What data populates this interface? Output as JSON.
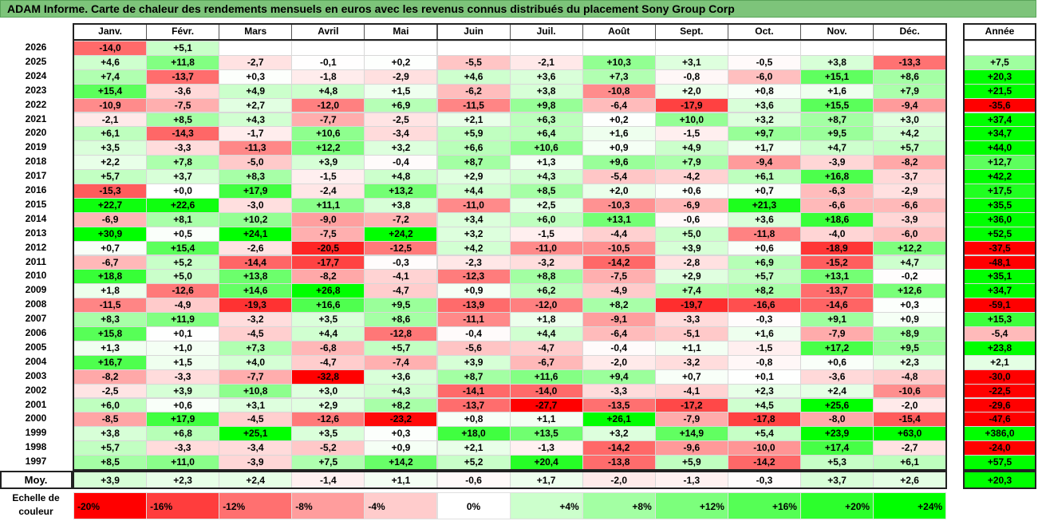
{
  "title": "ADAM Informe. Carte de chaleur des rendements mensuels en euros avec les revenus connus distribués du placement Sony Group Corp",
  "chart_data": {
    "type": "heatmap",
    "months": [
      "Janv.",
      "Févr.",
      "Mars",
      "Avril",
      "Mai",
      "Juin",
      "Juil.",
      "Août",
      "Sept.",
      "Oct.",
      "Nov.",
      "Déc."
    ],
    "year_header": "Année",
    "rows": [
      {
        "year": "2026",
        "values": [
          "-14,0",
          "+5,1",
          "",
          "",
          "",
          "",
          "",
          "",
          "",
          "",
          "",
          ""
        ],
        "annual": ""
      },
      {
        "year": "2025",
        "values": [
          "+4,6",
          "+11,8",
          "-2,7",
          "-0,1",
          "+0,2",
          "-5,5",
          "-2,1",
          "+10,3",
          "+3,1",
          "-0,5",
          "+3,8",
          "-13,3"
        ],
        "annual": "+7,5"
      },
      {
        "year": "2024",
        "values": [
          "+7,4",
          "-13,7",
          "+0,3",
          "-1,8",
          "-2,9",
          "+4,6",
          "+3,6",
          "+7,3",
          "-0,8",
          "-6,0",
          "+15,1",
          "+8,6"
        ],
        "annual": "+20,3"
      },
      {
        "year": "2023",
        "values": [
          "+15,4",
          "-3,6",
          "+4,9",
          "+4,8",
          "+1,5",
          "-6,2",
          "+3,8",
          "-10,8",
          "+2,0",
          "+0,8",
          "+1,6",
          "+7,9"
        ],
        "annual": "+21,5"
      },
      {
        "year": "2022",
        "values": [
          "-10,9",
          "-7,5",
          "+2,7",
          "-12,0",
          "+6,9",
          "-11,5",
          "+9,8",
          "-6,4",
          "-17,9",
          "+3,6",
          "+15,5",
          "-9,4"
        ],
        "annual": "-35,6"
      },
      {
        "year": "2021",
        "values": [
          "-2,1",
          "+8,5",
          "+4,3",
          "-7,7",
          "-2,5",
          "+2,1",
          "+6,3",
          "+0,2",
          "+10,0",
          "+3,2",
          "+8,7",
          "+3,0"
        ],
        "annual": "+37,4"
      },
      {
        "year": "2020",
        "values": [
          "+6,1",
          "-14,3",
          "-1,7",
          "+10,6",
          "-3,4",
          "+5,9",
          "+6,4",
          "+1,6",
          "-1,5",
          "+9,7",
          "+9,5",
          "+4,2"
        ],
        "annual": "+34,7"
      },
      {
        "year": "2019",
        "values": [
          "+3,5",
          "-3,3",
          "-11,3",
          "+12,2",
          "+3,2",
          "+6,6",
          "+10,6",
          "+0,9",
          "+4,9",
          "+1,7",
          "+4,7",
          "+5,7"
        ],
        "annual": "+44,0"
      },
      {
        "year": "2018",
        "values": [
          "+2,2",
          "+7,8",
          "-5,0",
          "+3,9",
          "-0,4",
          "+8,7",
          "+1,3",
          "+9,6",
          "+7,9",
          "-9,4",
          "-3,9",
          "-8,2"
        ],
        "annual": "+12,7"
      },
      {
        "year": "2017",
        "values": [
          "+5,7",
          "+3,7",
          "+8,3",
          "-1,5",
          "+4,8",
          "+2,9",
          "+4,3",
          "-5,4",
          "-4,2",
          "+6,1",
          "+16,8",
          "-3,7"
        ],
        "annual": "+42,2"
      },
      {
        "year": "2016",
        "values": [
          "-15,3",
          "+0,0",
          "+17,9",
          "-2,4",
          "+13,2",
          "+4,4",
          "+8,5",
          "+2,0",
          "+0,6",
          "+0,7",
          "-6,3",
          "-2,9"
        ],
        "annual": "+17,5"
      },
      {
        "year": "2015",
        "values": [
          "+22,7",
          "+22,6",
          "-3,0",
          "+11,1",
          "+3,8",
          "-11,0",
          "+2,5",
          "-10,3",
          "-6,9",
          "+21,3",
          "-6,6",
          "-6,6"
        ],
        "annual": "+35,5"
      },
      {
        "year": "2014",
        "values": [
          "-6,9",
          "+8,1",
          "+10,2",
          "-9,0",
          "-7,2",
          "+3,4",
          "+6,0",
          "+13,1",
          "-0,6",
          "+3,6",
          "+18,6",
          "-3,9"
        ],
        "annual": "+36,0"
      },
      {
        "year": "2013",
        "values": [
          "+30,9",
          "+0,5",
          "+24,1",
          "-7,5",
          "+24,2",
          "+3,2",
          "-1,5",
          "-4,4",
          "+5,0",
          "-11,8",
          "-4,0",
          "-6,0"
        ],
        "annual": "+52,5"
      },
      {
        "year": "2012",
        "values": [
          "+0,7",
          "+15,4",
          "-2,6",
          "-20,5",
          "-12,5",
          "+4,2",
          "-11,0",
          "-10,5",
          "+3,9",
          "+0,6",
          "-18,9",
          "+12,2"
        ],
        "annual": "-37,5"
      },
      {
        "year": "2011",
        "values": [
          "-6,7",
          "+5,2",
          "-14,4",
          "-17,7",
          "-0,3",
          "-2,3",
          "-3,2",
          "-14,2",
          "-2,8",
          "+6,9",
          "-15,2",
          "+4,7"
        ],
        "annual": "-48,1"
      },
      {
        "year": "2010",
        "values": [
          "+18,8",
          "+5,0",
          "+13,8",
          "-8,2",
          "-4,1",
          "-12,3",
          "+8,8",
          "-7,5",
          "+2,9",
          "+5,7",
          "+13,1",
          "-0,2"
        ],
        "annual": "+35,1"
      },
      {
        "year": "2009",
        "values": [
          "+1,8",
          "-12,6",
          "+14,6",
          "+26,8",
          "-4,7",
          "+0,9",
          "+6,2",
          "-4,9",
          "+7,4",
          "+8,2",
          "-13,7",
          "+12,6"
        ],
        "annual": "+34,7"
      },
      {
        "year": "2008",
        "values": [
          "-11,5",
          "-4,9",
          "-19,3",
          "+16,6",
          "+9,5",
          "-13,9",
          "-12,0",
          "+8,2",
          "-19,7",
          "-16,6",
          "-14,6",
          "+0,3"
        ],
        "annual": "-59,1"
      },
      {
        "year": "2007",
        "values": [
          "+8,3",
          "+11,9",
          "-3,2",
          "+3,5",
          "+8,6",
          "-11,1",
          "+1,8",
          "-9,1",
          "-3,3",
          "-0,3",
          "+9,1",
          "+0,9"
        ],
        "annual": "+15,3"
      },
      {
        "year": "2006",
        "values": [
          "+15,8",
          "+0,1",
          "-4,5",
          "+4,4",
          "-12,8",
          "-0,4",
          "+4,4",
          "-6,4",
          "-5,1",
          "+1,6",
          "-7,9",
          "+8,9"
        ],
        "annual": "-5,4"
      },
      {
        "year": "2005",
        "values": [
          "+1,3",
          "+1,0",
          "+7,3",
          "-6,8",
          "+5,7",
          "-5,6",
          "-4,7",
          "-0,4",
          "+1,1",
          "-1,5",
          "+17,2",
          "+9,5"
        ],
        "annual": "+23,8"
      },
      {
        "year": "2004",
        "values": [
          "+16,7",
          "+1,5",
          "+4,0",
          "-4,7",
          "-7,4",
          "+3,9",
          "-6,7",
          "-2,0",
          "-3,2",
          "-0,8",
          "+0,6",
          "+2,3"
        ],
        "annual": "+2,1"
      },
      {
        "year": "2003",
        "values": [
          "-8,2",
          "-3,3",
          "-7,7",
          "-32,8",
          "+3,6",
          "+8,7",
          "+11,6",
          "+9,4",
          "+0,7",
          "+0,1",
          "-3,6",
          "-4,8"
        ],
        "annual": "-30,0"
      },
      {
        "year": "2002",
        "values": [
          "-2,5",
          "+3,9",
          "+10,8",
          "+3,0",
          "+4,3",
          "-14,1",
          "-14,0",
          "-3,3",
          "-4,1",
          "+2,3",
          "+2,4",
          "-10,6"
        ],
        "annual": "-22,5"
      },
      {
        "year": "2001",
        "values": [
          "+6,0",
          "+0,6",
          "+3,1",
          "+2,9",
          "+8,2",
          "-13,7",
          "-27,7",
          "-13,5",
          "-17,2",
          "+4,5",
          "+25,6",
          "-2,0"
        ],
        "annual": "-29,6"
      },
      {
        "year": "2000",
        "values": [
          "-8,5",
          "+17,9",
          "-4,5",
          "-12,6",
          "-23,2",
          "+0,8",
          "+1,1",
          "+26,1",
          "-7,9",
          "-17,8",
          "-8,0",
          "-15,4"
        ],
        "annual": "-47,6"
      },
      {
        "year": "1999",
        "values": [
          "+3,8",
          "+6,8",
          "+25,1",
          "+3,5",
          "+0,3",
          "+18,0",
          "+13,5",
          "+3,2",
          "+14,9",
          "+5,4",
          "+23,9",
          "+63,0"
        ],
        "annual": "+386,0"
      },
      {
        "year": "1998",
        "values": [
          "+5,7",
          "-3,3",
          "-3,4",
          "-5,2",
          "+0,9",
          "+2,1",
          "-1,3",
          "-14,2",
          "-9,6",
          "-10,0",
          "+17,4",
          "-2,7"
        ],
        "annual": "-24,0"
      },
      {
        "year": "1997",
        "values": [
          "+8,5",
          "+11,0",
          "-3,9",
          "+7,5",
          "+14,2",
          "+5,2",
          "+20,4",
          "-13,8",
          "+5,9",
          "-14,2",
          "+5,3",
          "+6,1"
        ],
        "annual": "+57,5"
      }
    ],
    "average": {
      "label": "Moy.",
      "values": [
        "+3,9",
        "+2,3",
        "+2,4",
        "-1,4",
        "+1,1",
        "-0,6",
        "+1,7",
        "-2,0",
        "-1,3",
        "-0,3",
        "+3,7",
        "+2,6"
      ],
      "annual": "+20,3"
    },
    "scale": {
      "label_line1": "Echelle de",
      "label_line2": "couleur",
      "stops": [
        {
          "label": "-20%",
          "value": -20,
          "color": "#ff0000"
        },
        {
          "label": "-16%",
          "value": -16,
          "color": "#ff3d3d"
        },
        {
          "label": "-12%",
          "value": -12,
          "color": "#ff7070"
        },
        {
          "label": "-8%",
          "value": -8,
          "color": "#ff9d9d"
        },
        {
          "label": "-4%",
          "value": -4,
          "color": "#ffcccc"
        },
        {
          "label": "0%",
          "value": 0,
          "color": "#ffffff"
        },
        {
          "label": "+4%",
          "value": 4,
          "color": "#ccffcc"
        },
        {
          "label": "+8%",
          "value": 8,
          "color": "#a3ffa3"
        },
        {
          "label": "+12%",
          "value": 12,
          "color": "#7cff7c"
        },
        {
          "label": "+16%",
          "value": 16,
          "color": "#55ff55"
        },
        {
          "label": "+20%",
          "value": 20,
          "color": "#2cff2c"
        },
        {
          "label": "+24%",
          "value": 24,
          "color": "#00ff00"
        }
      ]
    },
    "colors": {
      "negative_max": "#ff0000",
      "neutral": "#ffffff",
      "positive_max": "#00ff00"
    }
  }
}
